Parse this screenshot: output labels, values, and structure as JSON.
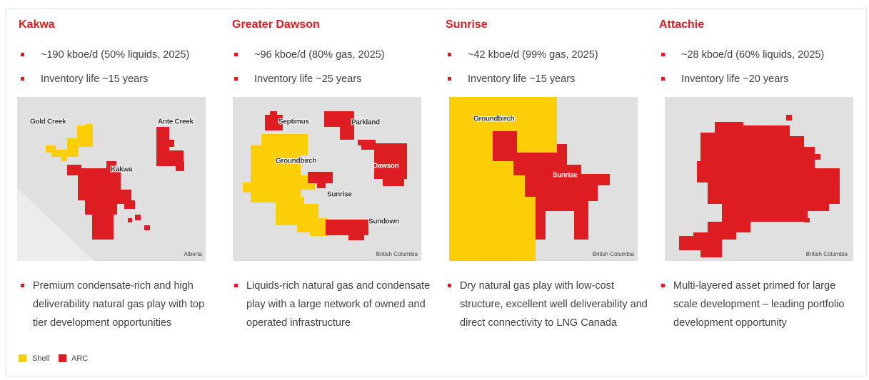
{
  "panels": [
    {
      "title": "Kakwa",
      "bullets": [
        "~190 kboe/d (50% liquids, 2025)",
        "Inventory life ~15 years"
      ],
      "map_labels": [
        "Gold Creek",
        "Ante Creek",
        "Kakwa"
      ],
      "region": "Alberta",
      "description": [
        "Premium condensate-rich and high",
        "deliverability natural gas play with top",
        "tier development opportunities"
      ]
    },
    {
      "title": "Greater Dawson",
      "bullets": [
        "~96 kboe/d (80% gas, 2025)",
        "Inventory life ~25 years"
      ],
      "map_labels": [
        "Septimus",
        "Parkland",
        "Groundbirch",
        "Dawson",
        "Sunrise",
        "Sundown"
      ],
      "region": "British Columbia",
      "description": [
        "Liquids-rich natural gas and condensate",
        "play with a large network of owned and",
        "operated infrastructure"
      ]
    },
    {
      "title": "Sunrise",
      "bullets": [
        "~42 kboe/d (99% gas, 2025)",
        "Inventory life ~15 years"
      ],
      "map_labels": [
        "Groundbirch",
        "Sunrise"
      ],
      "region": "British Columbia",
      "description": [
        "Dry natural gas play with low-cost",
        "structure, excellent well deliverability and",
        "direct connectivity to LNG Canada"
      ]
    },
    {
      "title": "Attachie",
      "bullets": [
        "~28 kboe/d (60% liquids, 2025)",
        "Inventory life ~20 years"
      ],
      "region": "British Columbia",
      "description": [
        "Multi-layered asset primed for large",
        "scale development – leading portfolio",
        "development opportunity"
      ]
    }
  ],
  "legend": [
    "Shell",
    "ARC"
  ]
}
